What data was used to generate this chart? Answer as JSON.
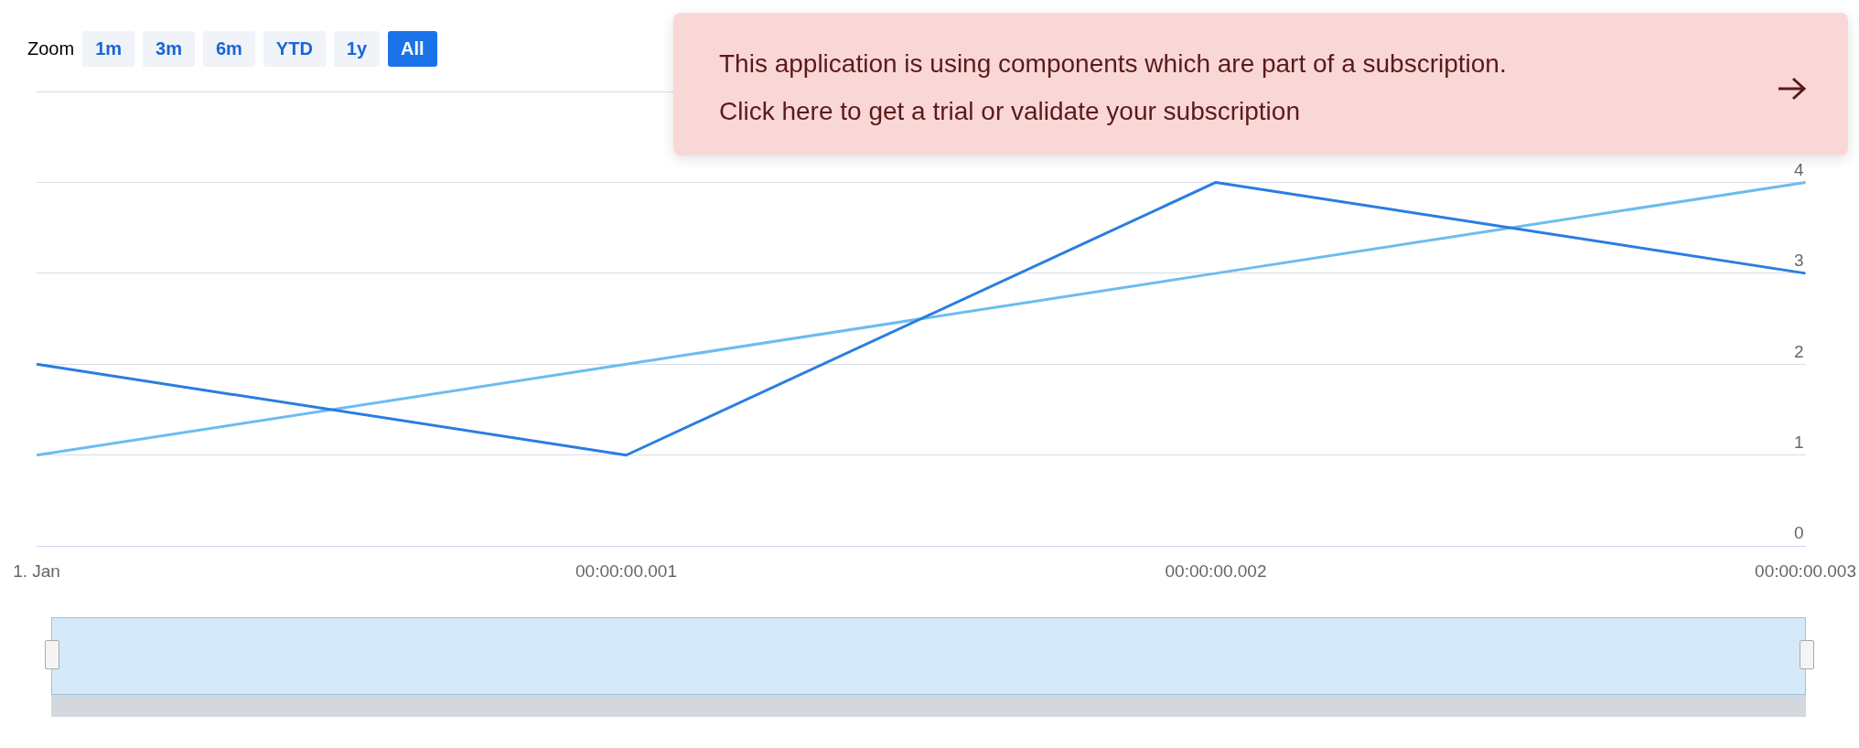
{
  "chart_data": {
    "type": "line",
    "categories": [
      "1. Jan",
      "00:00:00.001",
      "00:00:00.002",
      "00:00:00.003"
    ],
    "series": [
      {
        "color": "#2a7de1",
        "values": [
          2,
          1,
          4,
          3
        ]
      },
      {
        "color": "#6cbcf0",
        "values": [
          1,
          2,
          3,
          4
        ]
      }
    ],
    "ylim": [
      0,
      5
    ],
    "yticks": [
      0,
      1,
      2,
      3,
      4,
      {
        "value": 5,
        "label": null
      }
    ],
    "grid": "y",
    "legend": false,
    "marker": "none",
    "line_style": "solid",
    "annotations": [
      "Zoom",
      "1m",
      "3m",
      "6m",
      "YTD",
      "1y",
      "All",
      "This application is using components which are part of a subscription.",
      "Click here to get a trial or validate your subscription"
    ]
  }
}
